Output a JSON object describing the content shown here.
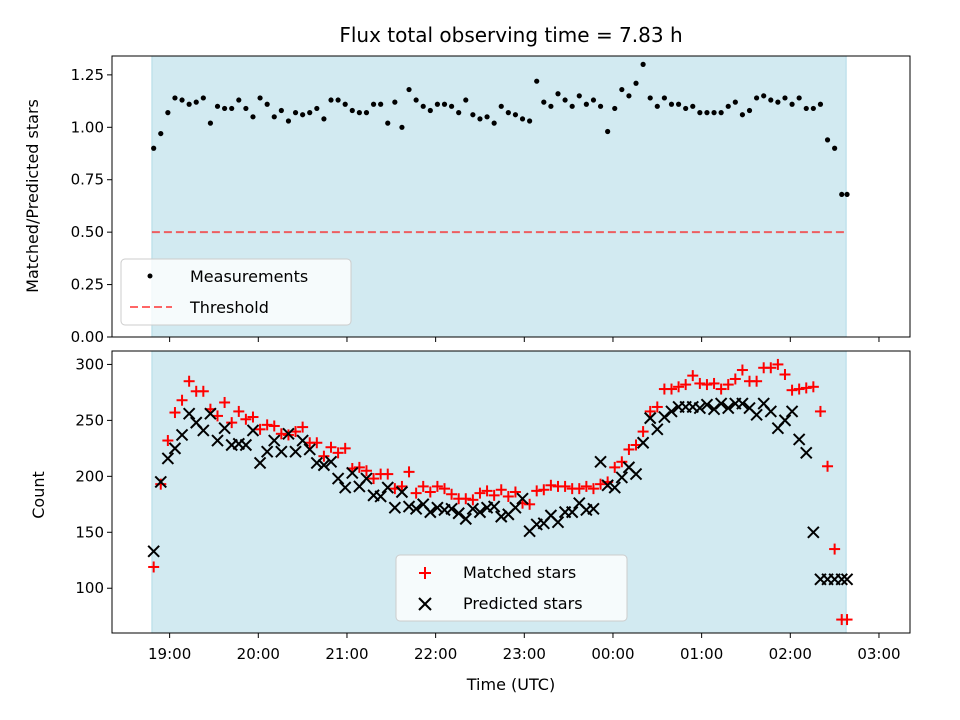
{
  "colors": {
    "shade": "#add8e6",
    "measurement": "#000000",
    "threshold": "#ff0000",
    "matched": "#ff0000",
    "predicted": "#000000"
  },
  "chart_data": [
    {
      "type": "scatter",
      "title": "Flux total observing time = 7.83 h",
      "xlabel": "",
      "ylabel": "Matched/Predicted stars",
      "xlim": [
        -0.65,
        8.35
      ],
      "ylim": [
        0.0,
        1.34
      ],
      "yticks": [
        0.0,
        0.25,
        0.5,
        0.75,
        1.0,
        1.25
      ],
      "ytick_labels": [
        "0.00",
        "0.25",
        "0.50",
        "0.75",
        "1.00",
        "1.25"
      ],
      "observing_window": [
        -0.2,
        7.63
      ],
      "threshold": 0.5,
      "legend_position": "lower-left",
      "legend": [
        "Measurements",
        "Threshold"
      ],
      "series": [
        {
          "name": "Measurements",
          "marker": "dot",
          "x": [
            -0.18,
            -0.1,
            -0.02,
            0.06,
            0.14,
            0.22,
            0.3,
            0.38,
            0.46,
            0.54,
            0.62,
            0.7,
            0.78,
            0.86,
            0.94,
            1.02,
            1.1,
            1.18,
            1.26,
            1.34,
            1.42,
            1.5,
            1.58,
            1.66,
            1.74,
            1.82,
            1.9,
            1.98,
            2.06,
            2.14,
            2.22,
            2.3,
            2.38,
            2.46,
            2.54,
            2.62,
            2.7,
            2.78,
            2.86,
            2.94,
            3.02,
            3.1,
            3.18,
            3.26,
            3.34,
            3.42,
            3.5,
            3.58,
            3.66,
            3.74,
            3.82,
            3.9,
            3.98,
            4.06,
            4.14,
            4.22,
            4.3,
            4.38,
            4.46,
            4.54,
            4.62,
            4.7,
            4.78,
            4.86,
            4.94,
            5.02,
            5.1,
            5.18,
            5.26,
            5.34,
            5.42,
            5.5,
            5.58,
            5.66,
            5.74,
            5.82,
            5.9,
            5.98,
            6.06,
            6.14,
            6.22,
            6.3,
            6.38,
            6.46,
            6.54,
            6.62,
            6.7,
            6.78,
            6.86,
            6.94,
            7.02,
            7.1,
            7.18,
            7.26,
            7.34,
            7.42,
            7.5,
            7.58,
            7.64
          ],
          "y": [
            0.9,
            0.97,
            1.07,
            1.14,
            1.13,
            1.11,
            1.12,
            1.14,
            1.02,
            1.1,
            1.09,
            1.09,
            1.13,
            1.09,
            1.05,
            1.14,
            1.11,
            1.05,
            1.08,
            1.03,
            1.07,
            1.06,
            1.07,
            1.09,
            1.04,
            1.13,
            1.13,
            1.11,
            1.08,
            1.07,
            1.07,
            1.11,
            1.11,
            1.02,
            1.12,
            1.0,
            1.18,
            1.13,
            1.1,
            1.08,
            1.11,
            1.11,
            1.1,
            1.07,
            1.13,
            1.06,
            1.04,
            1.05,
            1.02,
            1.1,
            1.07,
            1.06,
            1.04,
            1.03,
            1.22,
            1.12,
            1.1,
            1.16,
            1.13,
            1.1,
            1.15,
            1.11,
            1.13,
            1.1,
            0.98,
            1.09,
            1.18,
            1.15,
            1.21,
            1.3,
            1.14,
            1.1,
            1.14,
            1.11,
            1.11,
            1.09,
            1.1,
            1.07,
            1.07,
            1.07,
            1.07,
            1.1,
            1.12,
            1.06,
            1.08,
            1.14,
            1.15,
            1.13,
            1.12,
            1.14,
            1.11,
            1.14,
            1.09,
            1.09,
            1.11,
            0.94,
            0.9,
            0.68,
            0.68
          ]
        }
      ]
    },
    {
      "type": "scatter",
      "title": "",
      "xlabel": "Time (UTC)",
      "ylabel": "Count",
      "xlim": [
        -0.65,
        8.35
      ],
      "ylim": [
        60,
        312
      ],
      "yticks": [
        100,
        150,
        200,
        250,
        300
      ],
      "ytick_labels": [
        "100",
        "150",
        "200",
        "250",
        "300"
      ],
      "xticks": [
        0,
        1,
        2,
        3,
        4,
        5,
        6,
        7,
        8
      ],
      "xtick_labels": [
        "19:00",
        "20:00",
        "21:00",
        "22:00",
        "23:00",
        "00:00",
        "01:00",
        "02:00",
        "03:00"
      ],
      "observing_window": [
        -0.2,
        7.63
      ],
      "legend_position": "lower-center",
      "legend": [
        "Matched stars",
        "Predicted stars"
      ],
      "series": [
        {
          "name": "Matched stars",
          "marker": "plus",
          "x": [
            -0.18,
            -0.1,
            -0.02,
            0.06,
            0.14,
            0.22,
            0.3,
            0.38,
            0.46,
            0.54,
            0.62,
            0.7,
            0.78,
            0.86,
            0.94,
            1.02,
            1.1,
            1.18,
            1.26,
            1.34,
            1.42,
            1.5,
            1.58,
            1.66,
            1.74,
            1.82,
            1.9,
            1.98,
            2.06,
            2.14,
            2.22,
            2.3,
            2.38,
            2.46,
            2.54,
            2.62,
            2.7,
            2.78,
            2.86,
            2.94,
            3.02,
            3.1,
            3.18,
            3.26,
            3.34,
            3.42,
            3.5,
            3.58,
            3.66,
            3.74,
            3.82,
            3.9,
            3.98,
            4.06,
            4.14,
            4.22,
            4.3,
            4.38,
            4.46,
            4.54,
            4.62,
            4.7,
            4.78,
            4.86,
            4.94,
            5.02,
            5.1,
            5.18,
            5.26,
            5.34,
            5.42,
            5.5,
            5.58,
            5.66,
            5.74,
            5.82,
            5.9,
            5.98,
            6.06,
            6.14,
            6.22,
            6.3,
            6.38,
            6.46,
            6.54,
            6.62,
            6.7,
            6.78,
            6.86,
            6.94,
            7.02,
            7.1,
            7.18,
            7.26,
            7.34,
            7.42,
            7.5,
            7.58,
            7.64
          ],
          "y": [
            119,
            193,
            232,
            257,
            268,
            285,
            276,
            276,
            260,
            254,
            266,
            248,
            258,
            251,
            253,
            242,
            246,
            245,
            238,
            237,
            240,
            244,
            230,
            230,
            218,
            226,
            221,
            225,
            207,
            208,
            205,
            198,
            202,
            202,
            189,
            191,
            204,
            185,
            191,
            186,
            191,
            189,
            184,
            180,
            180,
            179,
            185,
            187,
            183,
            188,
            182,
            186,
            176,
            175,
            187,
            188,
            192,
            191,
            191,
            189,
            189,
            191,
            189,
            193,
            195,
            208,
            213,
            224,
            228,
            240,
            258,
            262,
            278,
            278,
            280,
            282,
            290,
            283,
            282,
            283,
            278,
            282,
            287,
            295,
            285,
            285,
            297,
            297,
            300,
            291,
            277,
            278,
            279,
            280,
            258,
            209,
            135,
            72,
            72
          ]
        },
        {
          "name": "Predicted stars",
          "marker": "cross",
          "x": [
            -0.18,
            -0.1,
            -0.02,
            0.06,
            0.14,
            0.22,
            0.3,
            0.38,
            0.46,
            0.54,
            0.62,
            0.7,
            0.78,
            0.86,
            0.94,
            1.02,
            1.1,
            1.18,
            1.26,
            1.34,
            1.42,
            1.5,
            1.58,
            1.66,
            1.74,
            1.82,
            1.9,
            1.98,
            2.06,
            2.14,
            2.22,
            2.3,
            2.38,
            2.46,
            2.54,
            2.62,
            2.7,
            2.78,
            2.86,
            2.94,
            3.02,
            3.1,
            3.18,
            3.26,
            3.34,
            3.42,
            3.5,
            3.58,
            3.66,
            3.74,
            3.82,
            3.9,
            3.98,
            4.06,
            4.14,
            4.22,
            4.3,
            4.38,
            4.46,
            4.54,
            4.62,
            4.7,
            4.78,
            4.86,
            4.94,
            5.02,
            5.1,
            5.18,
            5.26,
            5.34,
            5.42,
            5.5,
            5.58,
            5.66,
            5.74,
            5.82,
            5.9,
            5.98,
            6.06,
            6.14,
            6.22,
            6.3,
            6.38,
            6.46,
            6.54,
            6.62,
            6.7,
            6.78,
            6.86,
            6.94,
            7.02,
            7.1,
            7.18,
            7.26,
            7.34,
            7.42,
            7.5,
            7.58,
            7.64
          ],
          "y": [
            133,
            195,
            216,
            225,
            237,
            256,
            248,
            241,
            256,
            232,
            243,
            228,
            229,
            228,
            241,
            212,
            222,
            232,
            222,
            238,
            222,
            232,
            224,
            212,
            210,
            213,
            198,
            190,
            203,
            191,
            198,
            183,
            182,
            190,
            172,
            186,
            173,
            171,
            175,
            168,
            172,
            170,
            171,
            167,
            162,
            171,
            168,
            172,
            173,
            164,
            166,
            172,
            180,
            151,
            157,
            158,
            165,
            159,
            168,
            168,
            176,
            170,
            171,
            213,
            192,
            190,
            199,
            208,
            202,
            230,
            252,
            242,
            253,
            258,
            262,
            262,
            262,
            261,
            264,
            260,
            265,
            261,
            265,
            265,
            261,
            255,
            265,
            258,
            243,
            250,
            258,
            233,
            221,
            150,
            108,
            108,
            108,
            108,
            108
          ]
        }
      ]
    }
  ]
}
